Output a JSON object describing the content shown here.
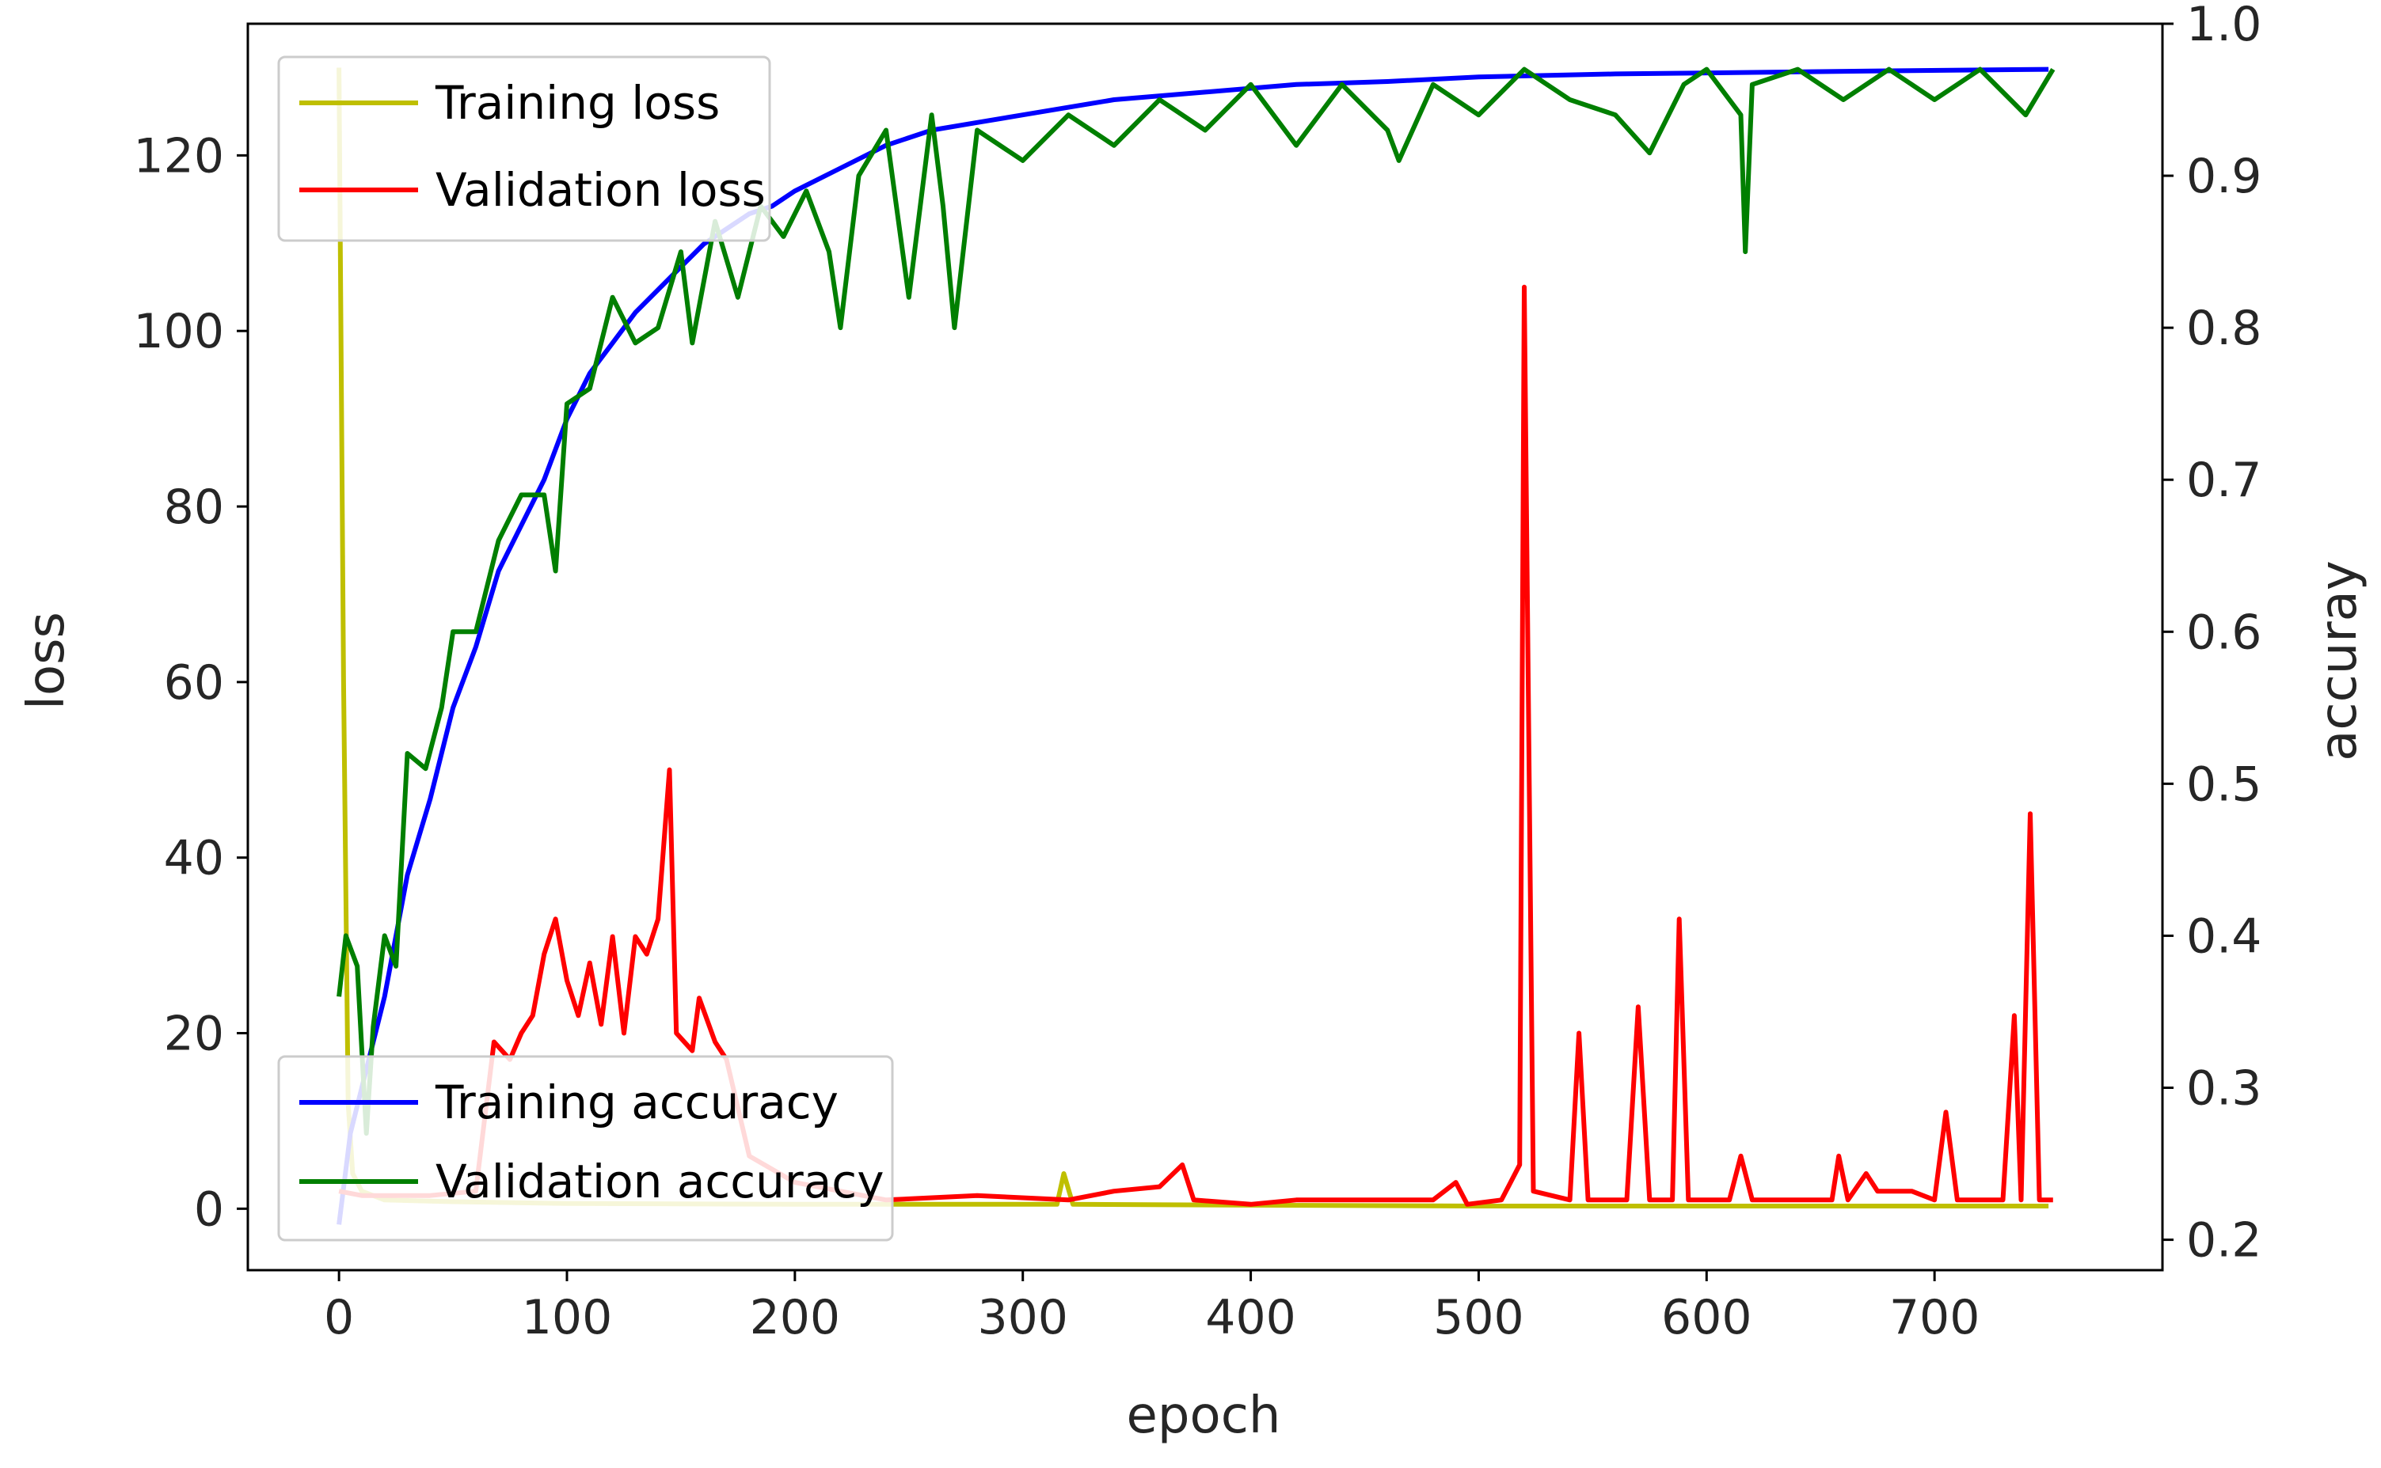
{
  "chart_data": {
    "type": "line",
    "title": "",
    "xlabel": "epoch",
    "ylabel_left": "loss",
    "ylabel_right": "accuray",
    "xlim": [
      -40,
      800
    ],
    "ylim_left": [
      -7,
      135
    ],
    "ylim_right": [
      0.18,
      1.0
    ],
    "xticks": [
      0,
      100,
      200,
      300,
      400,
      500,
      600,
      700
    ],
    "yticks_left": [
      0,
      20,
      40,
      60,
      80,
      100,
      120
    ],
    "yticks_right": [
      0.2,
      0.3,
      0.4,
      0.5,
      0.6,
      0.7,
      0.8,
      0.9,
      1.0
    ],
    "grid": false,
    "legends": [
      {
        "placement": "upper-left",
        "entries": [
          "Training loss",
          "Validation loss"
        ]
      },
      {
        "placement": "lower-left",
        "entries": [
          "Training accuracy",
          "Validation accuracy"
        ]
      }
    ],
    "series": [
      {
        "name": "Training loss",
        "axis": "left",
        "color": "#bfbf00",
        "points": [
          [
            0,
            130
          ],
          [
            2,
            60
          ],
          [
            4,
            12
          ],
          [
            6,
            4
          ],
          [
            10,
            2
          ],
          [
            20,
            1
          ],
          [
            50,
            0.8
          ],
          [
            100,
            0.6
          ],
          [
            200,
            0.5
          ],
          [
            315,
            0.5
          ],
          [
            318,
            4
          ],
          [
            322,
            0.5
          ],
          [
            400,
            0.4
          ],
          [
            500,
            0.3
          ],
          [
            600,
            0.3
          ],
          [
            750,
            0.3
          ]
        ]
      },
      {
        "name": "Validation loss",
        "axis": "left",
        "color": "#ff0000",
        "points": [
          [
            0,
            2
          ],
          [
            10,
            1.5
          ],
          [
            20,
            1.5
          ],
          [
            40,
            1.5
          ],
          [
            60,
            2
          ],
          [
            68,
            19
          ],
          [
            75,
            17
          ],
          [
            80,
            20
          ],
          [
            85,
            22
          ],
          [
            90,
            29
          ],
          [
            95,
            33
          ],
          [
            100,
            26
          ],
          [
            105,
            22
          ],
          [
            110,
            28
          ],
          [
            115,
            21
          ],
          [
            120,
            31
          ],
          [
            125,
            20
          ],
          [
            130,
            31
          ],
          [
            135,
            29
          ],
          [
            140,
            33
          ],
          [
            145,
            50
          ],
          [
            148,
            20
          ],
          [
            155,
            18
          ],
          [
            158,
            24
          ],
          [
            165,
            19
          ],
          [
            170,
            17
          ],
          [
            180,
            6
          ],
          [
            200,
            3
          ],
          [
            240,
            1
          ],
          [
            280,
            1.5
          ],
          [
            320,
            1
          ],
          [
            340,
            2
          ],
          [
            360,
            2.5
          ],
          [
            370,
            5
          ],
          [
            375,
            1
          ],
          [
            400,
            0.5
          ],
          [
            420,
            1
          ],
          [
            480,
            1
          ],
          [
            490,
            3
          ],
          [
            495,
            0.5
          ],
          [
            510,
            1
          ],
          [
            518,
            5
          ],
          [
            520,
            105
          ],
          [
            524,
            2
          ],
          [
            540,
            1
          ],
          [
            544,
            20
          ],
          [
            548,
            1
          ],
          [
            565,
            1
          ],
          [
            570,
            23
          ],
          [
            575,
            1
          ],
          [
            585,
            1
          ],
          [
            588,
            33
          ],
          [
            592,
            1
          ],
          [
            610,
            1
          ],
          [
            615,
            6
          ],
          [
            620,
            1
          ],
          [
            655,
            1
          ],
          [
            658,
            6
          ],
          [
            662,
            1
          ],
          [
            670,
            4
          ],
          [
            675,
            2
          ],
          [
            690,
            2
          ],
          [
            700,
            1
          ],
          [
            705,
            11
          ],
          [
            710,
            1
          ],
          [
            730,
            1
          ],
          [
            735,
            22
          ],
          [
            738,
            1
          ],
          [
            742,
            45
          ],
          [
            746,
            1
          ],
          [
            752,
            1
          ]
        ]
      },
      {
        "name": "Training accuracy",
        "axis": "right",
        "color": "#0000ff",
        "points": [
          [
            0,
            0.21
          ],
          [
            5,
            0.27
          ],
          [
            10,
            0.3
          ],
          [
            20,
            0.36
          ],
          [
            30,
            0.44
          ],
          [
            40,
            0.49
          ],
          [
            50,
            0.55
          ],
          [
            60,
            0.59
          ],
          [
            70,
            0.64
          ],
          [
            80,
            0.67
          ],
          [
            90,
            0.7
          ],
          [
            100,
            0.74
          ],
          [
            110,
            0.77
          ],
          [
            120,
            0.79
          ],
          [
            130,
            0.81
          ],
          [
            140,
            0.825
          ],
          [
            150,
            0.84
          ],
          [
            160,
            0.855
          ],
          [
            170,
            0.865
          ],
          [
            180,
            0.875
          ],
          [
            190,
            0.88
          ],
          [
            200,
            0.89
          ],
          [
            220,
            0.905
          ],
          [
            240,
            0.92
          ],
          [
            260,
            0.93
          ],
          [
            280,
            0.935
          ],
          [
            300,
            0.94
          ],
          [
            340,
            0.95
          ],
          [
            380,
            0.955
          ],
          [
            420,
            0.96
          ],
          [
            460,
            0.962
          ],
          [
            500,
            0.965
          ],
          [
            560,
            0.967
          ],
          [
            620,
            0.968
          ],
          [
            680,
            0.969
          ],
          [
            750,
            0.97
          ]
        ]
      },
      {
        "name": "Validation accuracy",
        "axis": "right",
        "color": "#007f00",
        "points": [
          [
            0,
            0.36
          ],
          [
            3,
            0.4
          ],
          [
            8,
            0.38
          ],
          [
            12,
            0.27
          ],
          [
            15,
            0.34
          ],
          [
            20,
            0.4
          ],
          [
            25,
            0.38
          ],
          [
            30,
            0.52
          ],
          [
            38,
            0.51
          ],
          [
            45,
            0.55
          ],
          [
            50,
            0.6
          ],
          [
            60,
            0.6
          ],
          [
            70,
            0.66
          ],
          [
            80,
            0.69
          ],
          [
            90,
            0.69
          ],
          [
            95,
            0.64
          ],
          [
            100,
            0.75
          ],
          [
            110,
            0.76
          ],
          [
            120,
            0.82
          ],
          [
            130,
            0.79
          ],
          [
            140,
            0.8
          ],
          [
            150,
            0.85
          ],
          [
            155,
            0.79
          ],
          [
            165,
            0.87
          ],
          [
            175,
            0.82
          ],
          [
            185,
            0.88
          ],
          [
            195,
            0.86
          ],
          [
            205,
            0.89
          ],
          [
            215,
            0.85
          ],
          [
            220,
            0.8
          ],
          [
            228,
            0.9
          ],
          [
            240,
            0.93
          ],
          [
            250,
            0.82
          ],
          [
            260,
            0.94
          ],
          [
            265,
            0.88
          ],
          [
            270,
            0.8
          ],
          [
            280,
            0.93
          ],
          [
            300,
            0.91
          ],
          [
            320,
            0.94
          ],
          [
            340,
            0.92
          ],
          [
            360,
            0.95
          ],
          [
            380,
            0.93
          ],
          [
            400,
            0.96
          ],
          [
            420,
            0.92
          ],
          [
            440,
            0.96
          ],
          [
            460,
            0.93
          ],
          [
            465,
            0.91
          ],
          [
            480,
            0.96
          ],
          [
            500,
            0.94
          ],
          [
            520,
            0.97
          ],
          [
            540,
            0.95
          ],
          [
            560,
            0.94
          ],
          [
            575,
            0.915
          ],
          [
            590,
            0.96
          ],
          [
            600,
            0.97
          ],
          [
            615,
            0.94
          ],
          [
            617,
            0.85
          ],
          [
            620,
            0.96
          ],
          [
            640,
            0.97
          ],
          [
            660,
            0.95
          ],
          [
            680,
            0.97
          ],
          [
            700,
            0.95
          ],
          [
            720,
            0.97
          ],
          [
            740,
            0.94
          ],
          [
            752,
            0.97
          ]
        ]
      }
    ]
  }
}
